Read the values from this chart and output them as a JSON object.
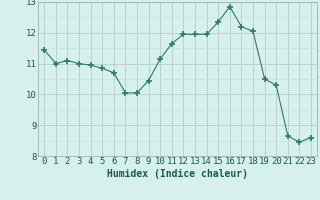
{
  "x": [
    0,
    1,
    2,
    3,
    4,
    5,
    6,
    7,
    8,
    9,
    10,
    11,
    12,
    13,
    14,
    15,
    16,
    17,
    18,
    19,
    20,
    21,
    22,
    23
  ],
  "y": [
    11.45,
    11.0,
    11.1,
    11.0,
    10.95,
    10.85,
    10.7,
    10.05,
    10.05,
    10.45,
    11.15,
    11.65,
    11.95,
    11.95,
    11.95,
    12.35,
    12.85,
    12.2,
    12.05,
    10.5,
    10.3,
    8.65,
    8.45,
    8.6
  ],
  "line_color": "#2d7a6a",
  "marker": "+",
  "marker_size": 4,
  "marker_lw": 1.2,
  "bg_color": "#d6f0ec",
  "major_grid_color": "#b8cec8",
  "minor_grid_color": "#c8deda",
  "xlabel": "Humidex (Indice chaleur)",
  "xlabel_color": "#1a5a4a",
  "xlabel_fontsize": 7,
  "tick_fontsize": 6.5,
  "tick_color": "#1a5a4a",
  "ylim": [
    8,
    13
  ],
  "xlim": [
    -0.5,
    23.5
  ],
  "yticks": [
    8,
    9,
    10,
    11,
    12,
    13
  ],
  "xticks": [
    0,
    1,
    2,
    3,
    4,
    5,
    6,
    7,
    8,
    9,
    10,
    11,
    12,
    13,
    14,
    15,
    16,
    17,
    18,
    19,
    20,
    21,
    22,
    23
  ]
}
